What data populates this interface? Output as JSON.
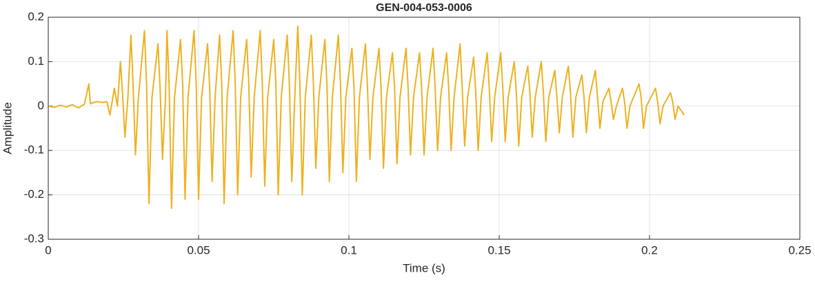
{
  "chart_data": {
    "type": "line",
    "title": "GEN-004-053-0006",
    "x_label": "Time (s)",
    "y_label": "Amplitude",
    "xlim": [
      0,
      0.25
    ],
    "ylim": [
      -0.3,
      0.2
    ],
    "xticks": [
      0,
      0.05,
      0.1,
      0.15,
      0.2,
      0.25
    ],
    "yticks": [
      -0.3,
      -0.2,
      -0.1,
      0,
      0.1,
      0.2
    ],
    "grid": true,
    "x": [
      0,
      0.002,
      0.004,
      0.006,
      0.008,
      0.01,
      0.012,
      0.0135,
      0.014,
      0.016,
      0.018,
      0.0195,
      0.0205,
      0.022,
      0.023,
      0.024,
      0.0247,
      0.0255,
      0.0265,
      0.0275,
      0.0282,
      0.029,
      0.03,
      0.032,
      0.0327,
      0.0335,
      0.0345,
      0.0365,
      0.0372,
      0.038,
      0.039,
      0.0395,
      0.0402,
      0.041,
      0.042,
      0.044,
      0.0447,
      0.0455,
      0.0465,
      0.0485,
      0.0492,
      0.05,
      0.051,
      0.053,
      0.0537,
      0.0545,
      0.0555,
      0.057,
      0.0577,
      0.0585,
      0.0595,
      0.0615,
      0.0622,
      0.063,
      0.064,
      0.066,
      0.0667,
      0.0675,
      0.0685,
      0.0705,
      0.0712,
      0.072,
      0.073,
      0.075,
      0.0757,
      0.0765,
      0.0775,
      0.0795,
      0.0802,
      0.081,
      0.082,
      0.083,
      0.0837,
      0.0845,
      0.0855,
      0.0875,
      0.0882,
      0.089,
      0.09,
      0.092,
      0.0927,
      0.0935,
      0.0945,
      0.0965,
      0.0972,
      0.098,
      0.099,
      0.101,
      0.1017,
      0.1025,
      0.1035,
      0.1055,
      0.1062,
      0.107,
      0.108,
      0.11,
      0.1107,
      0.1115,
      0.1125,
      0.1145,
      0.1152,
      0.116,
      0.117,
      0.119,
      0.1197,
      0.1205,
      0.1215,
      0.1235,
      0.1242,
      0.125,
      0.126,
      0.128,
      0.1287,
      0.1295,
      0.1305,
      0.1325,
      0.1332,
      0.134,
      0.135,
      0.137,
      0.1377,
      0.1385,
      0.1395,
      0.1415,
      0.1422,
      0.143,
      0.144,
      0.146,
      0.1467,
      0.1475,
      0.1485,
      0.1505,
      0.1512,
      0.152,
      0.153,
      0.155,
      0.1557,
      0.1565,
      0.1575,
      0.1595,
      0.1602,
      0.161,
      0.162,
      0.164,
      0.1647,
      0.1655,
      0.1665,
      0.1685,
      0.1692,
      0.17,
      0.171,
      0.173,
      0.1737,
      0.1745,
      0.1755,
      0.1775,
      0.1782,
      0.179,
      0.18,
      0.182,
      0.1827,
      0.1835,
      0.1845,
      0.1865,
      0.1872,
      0.188,
      0.189,
      0.191,
      0.1917,
      0.1925,
      0.1935,
      0.1965,
      0.1972,
      0.198,
      0.199,
      0.202,
      0.2027,
      0.2035,
      0.2045,
      0.207,
      0.2077,
      0.2085,
      0.2095,
      0.2115
    ],
    "series": [
      {
        "name": "Amplitude",
        "color": "#edb120",
        "values": [
          0,
          -0.003,
          0.002,
          -0.002,
          0.003,
          -0.004,
          0.004,
          0.05,
          0.005,
          0.01,
          0.008,
          0.01,
          -0.02,
          0.04,
          0.0,
          0.1,
          0.03,
          -0.07,
          0.02,
          0.16,
          0.05,
          -0.11,
          0.02,
          0.17,
          0.05,
          -0.22,
          0.02,
          0.14,
          0.04,
          -0.12,
          0.02,
          0.17,
          0.05,
          -0.23,
          0.02,
          0.15,
          0.05,
          -0.21,
          0.02,
          0.17,
          0.05,
          -0.21,
          0.02,
          0.14,
          0.04,
          -0.17,
          0.02,
          0.16,
          0.05,
          -0.22,
          0.02,
          0.17,
          0.05,
          -0.2,
          0.02,
          0.15,
          0.05,
          -0.16,
          0.02,
          0.17,
          0.05,
          -0.18,
          0.02,
          0.15,
          0.05,
          -0.2,
          0.02,
          0.16,
          0.05,
          -0.17,
          0.02,
          0.18,
          0.05,
          -0.2,
          0.02,
          0.16,
          0.05,
          -0.14,
          0.02,
          0.15,
          0.05,
          -0.17,
          0.02,
          0.16,
          0.05,
          -0.15,
          0.02,
          0.13,
          0.04,
          -0.17,
          0.02,
          0.14,
          0.04,
          -0.12,
          0.02,
          0.13,
          0.04,
          -0.14,
          0.02,
          0.12,
          0.04,
          -0.13,
          0.02,
          0.13,
          0.04,
          -0.11,
          0.02,
          0.12,
          0.04,
          -0.11,
          0.02,
          0.13,
          0.04,
          -0.1,
          0.02,
          0.12,
          0.04,
          -0.1,
          0.02,
          0.14,
          0.04,
          -0.09,
          0.02,
          0.11,
          0.03,
          -0.1,
          0.02,
          0.12,
          0.04,
          -0.08,
          0.02,
          0.12,
          0.04,
          -0.08,
          0.02,
          0.1,
          0.03,
          -0.09,
          0.02,
          0.09,
          0.03,
          -0.07,
          0.02,
          0.1,
          0.03,
          -0.08,
          0.02,
          0.08,
          0.02,
          -0.06,
          0.02,
          0.09,
          0.03,
          -0.07,
          0.02,
          0.07,
          0.02,
          -0.06,
          0.02,
          0.08,
          0.02,
          -0.05,
          0.01,
          0.04,
          0.01,
          -0.03,
          0,
          0.04,
          0.01,
          -0.05,
          0,
          0.05,
          0.02,
          -0.05,
          0,
          0.04,
          0.01,
          -0.04,
          0,
          0.03,
          0.01,
          -0.03,
          0,
          -0.02
        ]
      }
    ]
  }
}
